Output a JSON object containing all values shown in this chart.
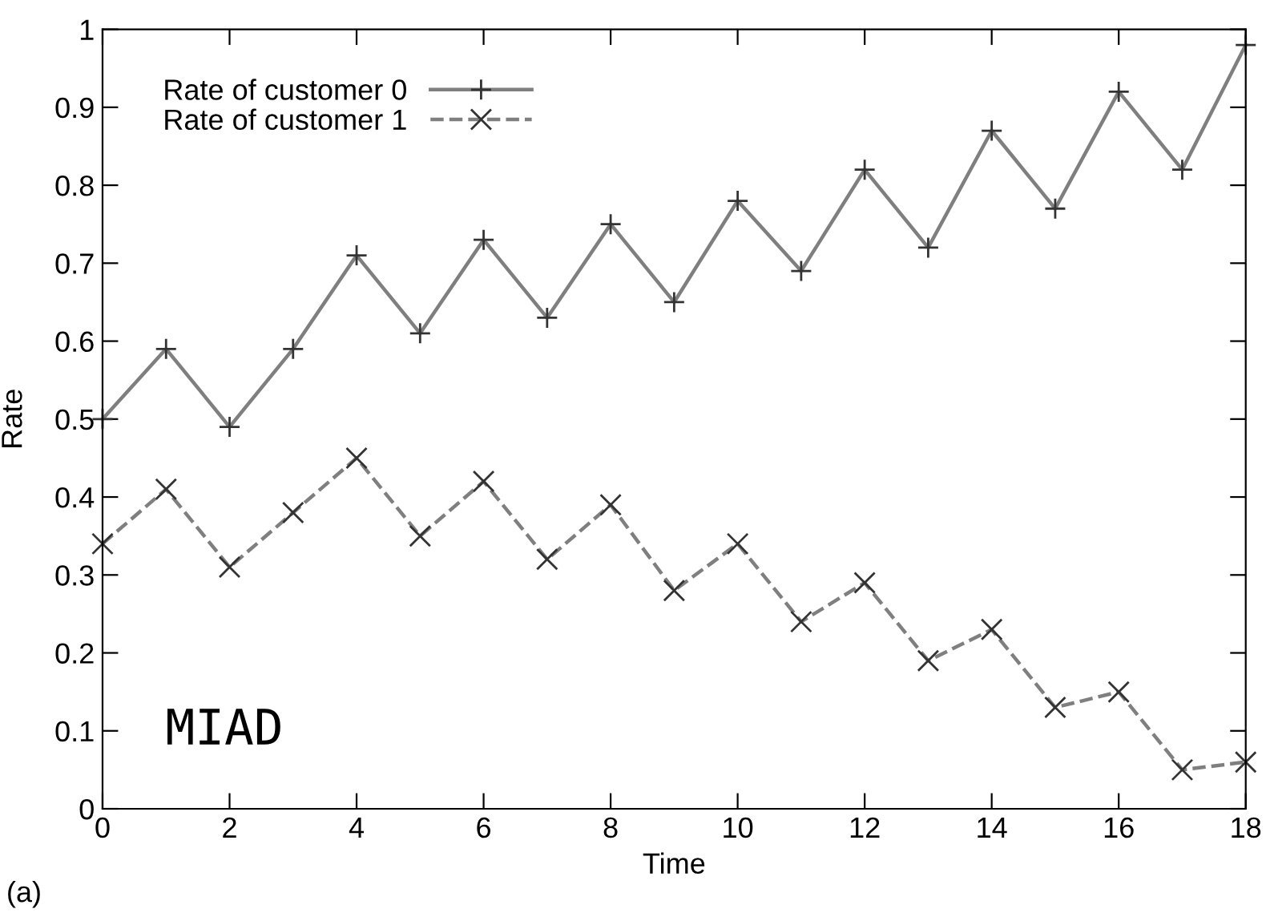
{
  "chart_data": {
    "type": "line",
    "xlabel": "Time",
    "ylabel": "Rate",
    "x": [
      0,
      1,
      2,
      3,
      4,
      5,
      6,
      7,
      8,
      9,
      10,
      11,
      12,
      13,
      14,
      15,
      16,
      17,
      18
    ],
    "series": [
      {
        "name": "Rate of customer 0",
        "color": "#7f7f7f",
        "marker": "cross",
        "line_style": "solid",
        "values": [
          0.5,
          0.59,
          0.49,
          0.59,
          0.71,
          0.61,
          0.73,
          0.63,
          0.75,
          0.65,
          0.78,
          0.69,
          0.82,
          0.72,
          0.87,
          0.77,
          0.92,
          0.82,
          0.98
        ]
      },
      {
        "name": "Rate of customer 1",
        "color": "#7f7f7f",
        "marker": "cross",
        "line_style": "dashed",
        "values": [
          0.34,
          0.41,
          0.31,
          0.38,
          0.45,
          0.35,
          0.42,
          0.32,
          0.39,
          0.28,
          0.34,
          0.24,
          0.29,
          0.19,
          0.23,
          0.13,
          0.15,
          0.05,
          0.06
        ]
      }
    ],
    "xlim": [
      0,
      18
    ],
    "xticks": [
      0,
      2,
      4,
      6,
      8,
      10,
      12,
      14,
      16,
      18
    ],
    "ylim": [
      0,
      1
    ],
    "yticks": [
      0,
      0.1,
      0.2,
      0.3,
      0.4,
      0.5,
      0.6,
      0.7,
      0.8,
      0.9,
      1
    ],
    "grid": false,
    "legend": "top left",
    "annotations": [
      "MIAD",
      "(a)"
    ]
  }
}
